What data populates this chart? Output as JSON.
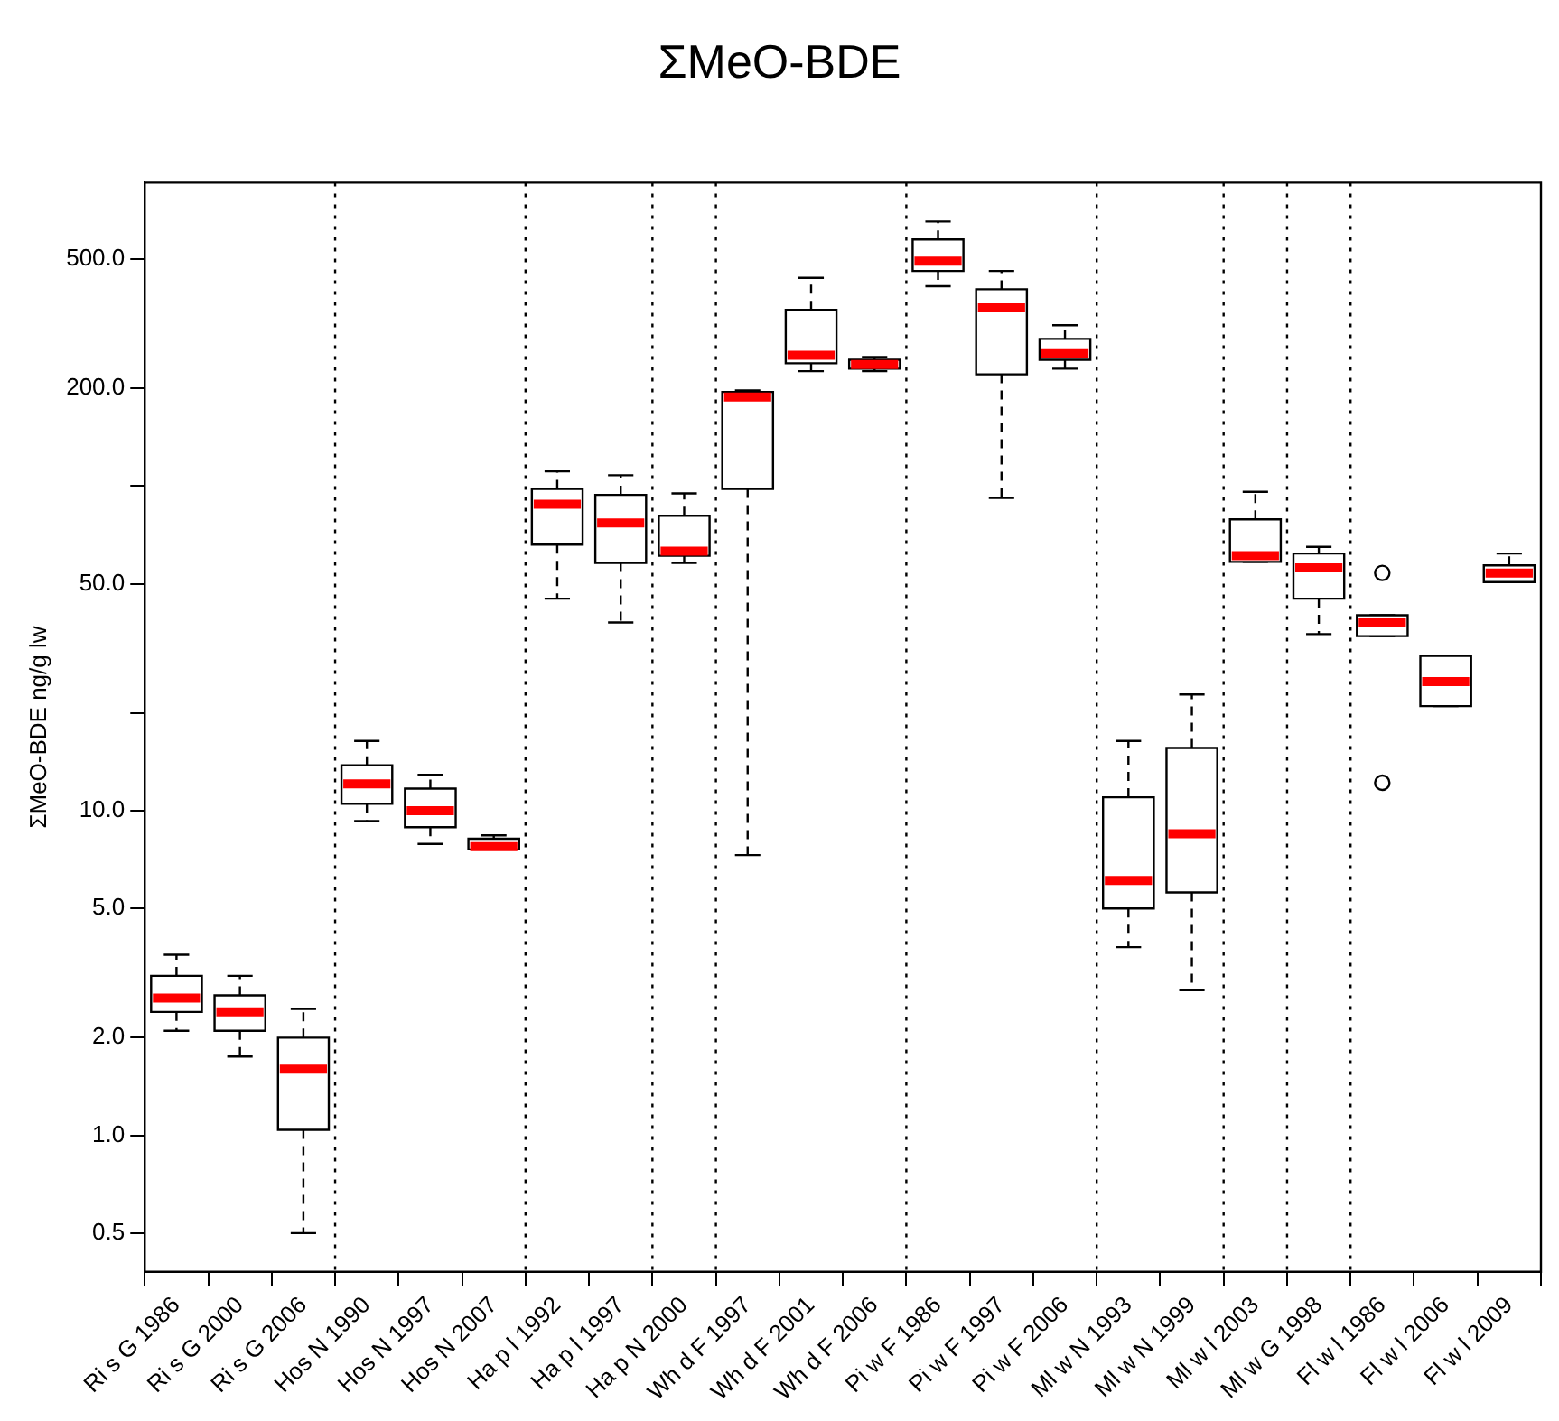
{
  "chart_data": {
    "type": "box",
    "title": "ΣMeO-BDE",
    "ylabel": "ΣMeO-BDE ng/g lw",
    "log": "y",
    "grid": false,
    "legend": false,
    "categories": [
      "Ri s G 1986",
      "Ri s G 2000",
      "Ri s G 2006",
      "Hos N 1990",
      "Hos N 1997",
      "Hos N 2007",
      "Ha p l 1992",
      "Ha p l 1997",
      "Ha p N 2000",
      "Wh d F 1997",
      "Wh d F 2001",
      "Wh d F 2006",
      "Pi w F 1986",
      "Pi w F 1997",
      "Pi w F 2006",
      "Ml w N 1993",
      "Ml w N 1999",
      "Ml w l 2003",
      "Ml w G 1998",
      "Fl w l 1986",
      "Fl w l 2006",
      "Fl w l 2009"
    ],
    "boxes": [
      {
        "low": 2.1,
        "q1": 2.4,
        "median": 2.65,
        "q3": 3.1,
        "high": 3.6
      },
      {
        "low": 1.75,
        "q1": 2.1,
        "median": 2.4,
        "q3": 2.7,
        "high": 3.1
      },
      {
        "low": 0.5,
        "q1": 1.04,
        "median": 1.6,
        "q3": 2.0,
        "high": 2.45
      },
      {
        "low": 9.3,
        "q1": 10.5,
        "median": 12.1,
        "q3": 13.8,
        "high": 16.4
      },
      {
        "low": 7.9,
        "q1": 8.9,
        "median": 10,
        "q3": 11.7,
        "high": 12.9
      },
      {
        "low": 7.6,
        "q1": 7.6,
        "median": 7.75,
        "q3": 8.2,
        "high": 8.4
      },
      {
        "low": 45,
        "q1": 66,
        "median": 88,
        "q3": 98,
        "high": 111
      },
      {
        "low": 38,
        "q1": 58,
        "median": 77,
        "q3": 94,
        "high": 108
      },
      {
        "low": 58,
        "q1": 61,
        "median": 63,
        "q3": 81,
        "high": 95
      },
      {
        "low": 7.3,
        "q1": 98,
        "median": 188,
        "q3": 195,
        "high": 197
      },
      {
        "low": 226,
        "q1": 239,
        "median": 253,
        "q3": 349,
        "high": 438
      },
      {
        "low": 226,
        "q1": 230,
        "median": 237,
        "q3": 245,
        "high": 250
      },
      {
        "low": 413,
        "q1": 460,
        "median": 493,
        "q3": 575,
        "high": 653
      },
      {
        "low": 92,
        "q1": 221,
        "median": 354,
        "q3": 404,
        "high": 460
      },
      {
        "low": 230,
        "q1": 245,
        "median": 256,
        "q3": 284,
        "high": 313
      },
      {
        "low": 3.8,
        "q1": 5,
        "median": 6.1,
        "q3": 11,
        "high": 16.4
      },
      {
        "low": 2.8,
        "q1": 5.6,
        "median": 8.5,
        "q3": 15.6,
        "high": 22.8
      },
      {
        "low": 58.4,
        "q1": 58.4,
        "median": 61,
        "q3": 79,
        "high": 96
      },
      {
        "low": 35,
        "q1": 45,
        "median": 56,
        "q3": 62,
        "high": 65
      },
      {
        "low": 34.5,
        "q1": 34.5,
        "median": 38,
        "q3": 40,
        "high": 40,
        "outliers": [
          54,
          12.2
        ]
      },
      {
        "low": 21,
        "q1": 21,
        "median": 25,
        "q3": 30,
        "high": 30
      },
      {
        "low": 50.6,
        "q1": 50.6,
        "median": 54,
        "q3": 57,
        "high": 62
      }
    ],
    "ylim": [
      0.38,
      860
    ],
    "yticks": [
      0.5,
      {
        "value": 1,
        "label": "1.0"
      },
      {
        "value": 2,
        "label": "2.0"
      },
      {
        "value": 5,
        "label": "5.0"
      },
      {
        "value": 10,
        "label": "10.0"
      },
      {
        "value": 20,
        "label": null
      },
      {
        "value": 50,
        "label": "50.0"
      },
      {
        "value": 100,
        "label": null
      },
      {
        "value": 200,
        "label": "200.0"
      },
      {
        "value": 500,
        "label": "500.0"
      }
    ]
  }
}
